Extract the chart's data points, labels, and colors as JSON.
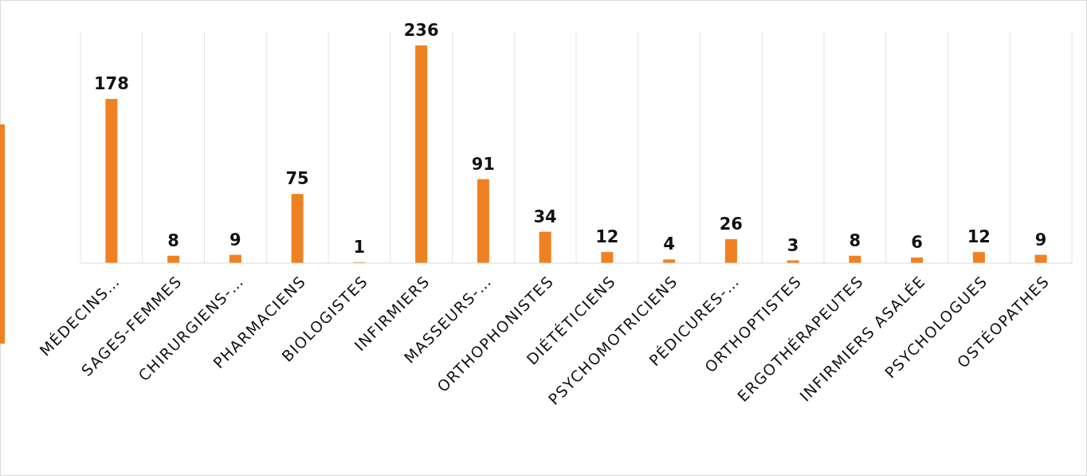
{
  "chart_data": {
    "type": "bar",
    "categories": [
      "MÉDECINS…",
      "SAGES-FEMMES",
      "CHIRURGIENS-…",
      "PHARMACIENS",
      "BIOLOGISTES",
      "INFIRMIERS",
      "MASSEURS-…",
      "ORTHOPHONISTES",
      "DIÉTÉTICIENS",
      "PSYCHOMOTRICIENS",
      "PÉDICURES-…",
      "ORTHOPTISTES",
      "ERGOTHÉRAPEUTES",
      "INFIRMIERS ASALÉE",
      "PSYCHOLOGUES",
      "OSTÉOPATHES"
    ],
    "values": [
      178,
      8,
      9,
      75,
      1,
      236,
      91,
      34,
      12,
      4,
      26,
      3,
      8,
      6,
      12,
      9
    ],
    "color": "#f08122",
    "data_labels": true,
    "grid": "x"
  }
}
